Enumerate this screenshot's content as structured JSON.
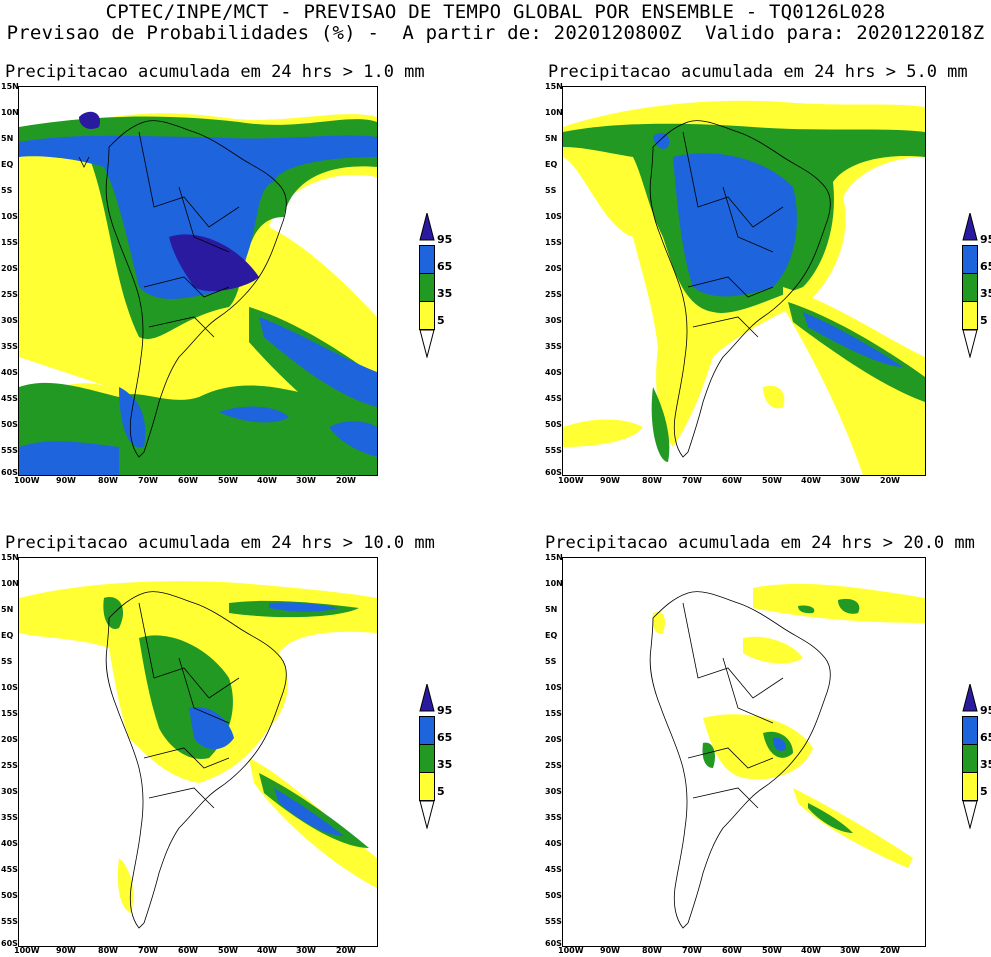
{
  "header": {
    "line1": "CPTEC/INPE/MCT - PREVISAO DE TEMPO GLOBAL POR ENSEMBLE - TQ0126L028",
    "line2": "Previsao de Probabilidades (%) -  A partir de: 2020120800Z  Valido para: 2020122018Z"
  },
  "panels": [
    {
      "title": "Precipitacao acumulada em 24 hrs > 1.0 mm"
    },
    {
      "title": "Precipitacao acumulada em 24 hrs > 5.0 mm"
    },
    {
      "title": "Precipitacao acumulada em 24 hrs > 10.0 mm"
    },
    {
      "title": "Precipitacao acumulada em 24 hrs > 20.0 mm"
    }
  ],
  "lat_labels": [
    "15N",
    "10N",
    "5N",
    "EQ",
    "5S",
    "10S",
    "15S",
    "20S",
    "25S",
    "30S",
    "35S",
    "40S",
    "45S",
    "50S",
    "55S",
    "60S"
  ],
  "lon_labels": [
    "100W",
    "90W",
    "80W",
    "70W",
    "60W",
    "50W",
    "40W",
    "30W",
    "20W"
  ],
  "colorbar": {
    "levels": [
      "95",
      "65",
      "35",
      "5"
    ],
    "colors": {
      "c5": "#ffff33",
      "c35": "#229922",
      "c65": "#1e64dc",
      "c95": "#2a1aa0"
    }
  }
}
